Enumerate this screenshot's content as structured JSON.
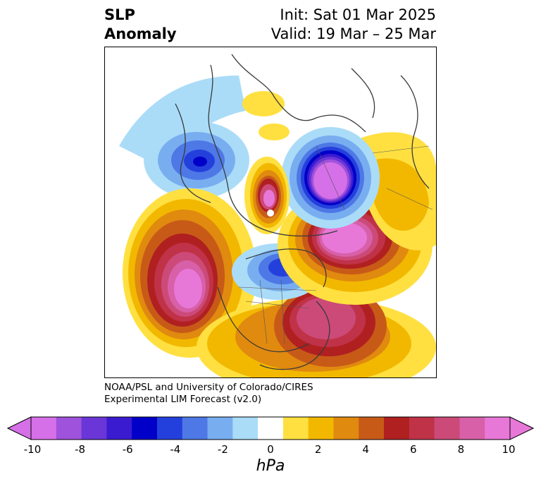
{
  "title": {
    "left_line1": "SLP",
    "left_line2": "Anomaly",
    "init": "Init: Sat 01 Mar 2025",
    "valid": "Valid: 19 Mar – 25 Mar"
  },
  "credit": {
    "line1": "NOAA/PSL and University of Colorado/CIRES",
    "line2": "Experimental LIM Forecast (v2.0)"
  },
  "colorbar": {
    "unit": "hPa",
    "ticks": [
      "-10",
      "-8",
      "-6",
      "-4",
      "-2",
      "0",
      "2",
      "4",
      "6",
      "8",
      "10"
    ],
    "colors": [
      "#d670e8",
      "#9f52dc",
      "#6a36d8",
      "#3a1bd0",
      "#0000c8",
      "#2440dc",
      "#4e78e6",
      "#78aef0",
      "#aadcf8",
      "#ffffff",
      "#ffe040",
      "#f2b800",
      "#e08a10",
      "#c85a18",
      "#b02020",
      "#c03248",
      "#cc4a78",
      "#d860a8",
      "#e878d8"
    ],
    "under_color": "#d670e8",
    "over_color": "#e878d8"
  },
  "map": {
    "projection": "north-polar-stereographic",
    "anomaly_centers": [
      {
        "name": "north-pacific-high",
        "value": 10
      },
      {
        "name": "eastern-us-high",
        "value": 8
      },
      {
        "name": "northern-europe-high",
        "value": 10
      },
      {
        "name": "siberia-low",
        "value": -10
      },
      {
        "name": "hudson-bay-low",
        "value": -6
      },
      {
        "name": "eastern-siberia-low",
        "value": -6
      }
    ]
  }
}
